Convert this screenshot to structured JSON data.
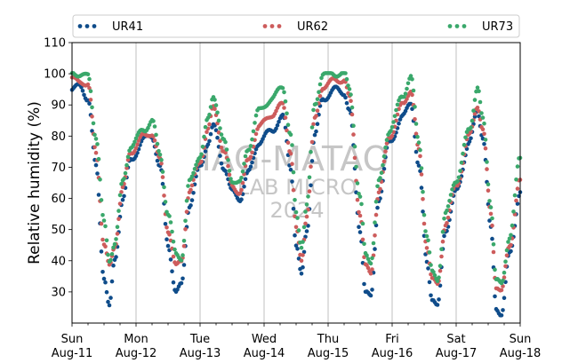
{
  "chart_data": {
    "type": "scatter",
    "ylabel": "Relative humidity (%)",
    "xlabel": "",
    "ylim": [
      20,
      110
    ],
    "xlim": [
      "2024-08-11T00:00",
      "2024-08-18T00:00"
    ],
    "yticks": [
      30,
      40,
      50,
      60,
      70,
      80,
      90,
      100,
      110
    ],
    "xticks": [
      {
        "day": "Sun",
        "date": "Aug-11"
      },
      {
        "day": "Mon",
        "date": "Aug-12"
      },
      {
        "day": "Tue",
        "date": "Aug-13"
      },
      {
        "day": "Wed",
        "date": "Aug-14"
      },
      {
        "day": "Thu",
        "date": "Aug-15"
      },
      {
        "day": "Fri",
        "date": "Aug-16"
      },
      {
        "day": "Sat",
        "date": "Aug-17"
      },
      {
        "day": "Sun",
        "date": "Aug-18"
      }
    ],
    "grid": "x-major",
    "legend": "top",
    "series": [
      {
        "name": "UR41",
        "color": "#0f4c8a",
        "points": [
          [
            "2024-08-11T00:00",
            95
          ],
          [
            "2024-08-11T03:00",
            96
          ],
          [
            "2024-08-11T06:00",
            92
          ],
          [
            "2024-08-11T09:00",
            70
          ],
          [
            "2024-08-11T12:00",
            35
          ],
          [
            "2024-08-11T14:00",
            25
          ],
          [
            "2024-08-11T16:00",
            40
          ],
          [
            "2024-08-11T19:00",
            60
          ],
          [
            "2024-08-11T22:00",
            72
          ],
          [
            "2024-08-12T03:00",
            79
          ],
          [
            "2024-08-12T06:00",
            80
          ],
          [
            "2024-08-12T09:00",
            70
          ],
          [
            "2024-08-12T12:00",
            45
          ],
          [
            "2024-08-12T15:00",
            30
          ],
          [
            "2024-08-12T17:00",
            32
          ],
          [
            "2024-08-12T20:00",
            58
          ],
          [
            "2024-08-13T00:00",
            70
          ],
          [
            "2024-08-13T03:00",
            78
          ],
          [
            "2024-08-13T05:00",
            83
          ],
          [
            "2024-08-13T09:00",
            70
          ],
          [
            "2024-08-13T12:00",
            62
          ],
          [
            "2024-08-13T15:00",
            60
          ],
          [
            "2024-08-13T18:00",
            68
          ],
          [
            "2024-08-13T22:00",
            78
          ],
          [
            "2024-08-14T03:00",
            82
          ],
          [
            "2024-08-14T07:00",
            86
          ],
          [
            "2024-08-14T10:00",
            70
          ],
          [
            "2024-08-14T12:00",
            45
          ],
          [
            "2024-08-14T14:00",
            35
          ],
          [
            "2024-08-14T16:00",
            50
          ],
          [
            "2024-08-14T19:00",
            80
          ],
          [
            "2024-08-14T22:00",
            92
          ],
          [
            "2024-08-15T03:00",
            95
          ],
          [
            "2024-08-15T06:00",
            94
          ],
          [
            "2024-08-15T08:00",
            88
          ],
          [
            "2024-08-15T12:00",
            50
          ],
          [
            "2024-08-15T14:00",
            30
          ],
          [
            "2024-08-15T16:00",
            28
          ],
          [
            "2024-08-15T19:00",
            60
          ],
          [
            "2024-08-15T23:00",
            78
          ],
          [
            "2024-08-16T04:00",
            86
          ],
          [
            "2024-08-16T07:00",
            91
          ],
          [
            "2024-08-16T10:00",
            70
          ],
          [
            "2024-08-16T13:00",
            40
          ],
          [
            "2024-08-16T15:00",
            28
          ],
          [
            "2024-08-16T17:00",
            25
          ],
          [
            "2024-08-16T20:00",
            50
          ],
          [
            "2024-08-17T00:00",
            62
          ],
          [
            "2024-08-17T05:00",
            78
          ],
          [
            "2024-08-17T08:00",
            88
          ],
          [
            "2024-08-17T10:00",
            80
          ],
          [
            "2024-08-17T13:00",
            50
          ],
          [
            "2024-08-17T15:00",
            25
          ],
          [
            "2024-08-17T17:00",
            23
          ],
          [
            "2024-08-17T20:00",
            42
          ],
          [
            "2024-08-18T00:00",
            62
          ]
        ]
      },
      {
        "name": "UR62",
        "color": "#cd5c5c",
        "points": [
          [
            "2024-08-11T00:00",
            98
          ],
          [
            "2024-08-11T03:00",
            98
          ],
          [
            "2024-08-11T06:00",
            96
          ],
          [
            "2024-08-11T09:00",
            75
          ],
          [
            "2024-08-11T12:00",
            45
          ],
          [
            "2024-08-11T14:00",
            38
          ],
          [
            "2024-08-11T16:00",
            45
          ],
          [
            "2024-08-11T19:00",
            63
          ],
          [
            "2024-08-11T22:00",
            75
          ],
          [
            "2024-08-12T03:00",
            80
          ],
          [
            "2024-08-12T06:00",
            81
          ],
          [
            "2024-08-12T09:00",
            72
          ],
          [
            "2024-08-12T12:00",
            50
          ],
          [
            "2024-08-12T15:00",
            38
          ],
          [
            "2024-08-12T17:00",
            40
          ],
          [
            "2024-08-12T20:00",
            62
          ],
          [
            "2024-08-13T00:00",
            72
          ],
          [
            "2024-08-13T03:00",
            82
          ],
          [
            "2024-08-13T05:00",
            89
          ],
          [
            "2024-08-13T09:00",
            75
          ],
          [
            "2024-08-13T12:00",
            64
          ],
          [
            "2024-08-13T15:00",
            62
          ],
          [
            "2024-08-13T18:00",
            72
          ],
          [
            "2024-08-13T22:00",
            83
          ],
          [
            "2024-08-14T03:00",
            87
          ],
          [
            "2024-08-14T07:00",
            90
          ],
          [
            "2024-08-14T10:00",
            75
          ],
          [
            "2024-08-14T12:00",
            50
          ],
          [
            "2024-08-14T14:00",
            40
          ],
          [
            "2024-08-14T16:00",
            55
          ],
          [
            "2024-08-14T19:00",
            85
          ],
          [
            "2024-08-14T22:00",
            96
          ],
          [
            "2024-08-15T03:00",
            98
          ],
          [
            "2024-08-15T06:00",
            98
          ],
          [
            "2024-08-15T08:00",
            92
          ],
          [
            "2024-08-15T12:00",
            55
          ],
          [
            "2024-08-15T14:00",
            38
          ],
          [
            "2024-08-15T16:00",
            36
          ],
          [
            "2024-08-15T19:00",
            62
          ],
          [
            "2024-08-15T23:00",
            80
          ],
          [
            "2024-08-16T04:00",
            90
          ],
          [
            "2024-08-16T07:00",
            95
          ],
          [
            "2024-08-16T10:00",
            75
          ],
          [
            "2024-08-16T13:00",
            45
          ],
          [
            "2024-08-16T15:00",
            34
          ],
          [
            "2024-08-16T17:00",
            32
          ],
          [
            "2024-08-16T20:00",
            52
          ],
          [
            "2024-08-17T00:00",
            64
          ],
          [
            "2024-08-17T05:00",
            80
          ],
          [
            "2024-08-17T08:00",
            90
          ],
          [
            "2024-08-17T10:00",
            82
          ],
          [
            "2024-08-17T13:00",
            55
          ],
          [
            "2024-08-17T15:00",
            32
          ],
          [
            "2024-08-17T17:00",
            30
          ],
          [
            "2024-08-17T20:00",
            45
          ],
          [
            "2024-08-18T00:00",
            66
          ]
        ]
      },
      {
        "name": "UR73",
        "color": "#3aa86b",
        "points": [
          [
            "2024-08-11T00:00",
            100
          ],
          [
            "2024-08-11T03:00",
            100
          ],
          [
            "2024-08-11T06:00",
            99
          ],
          [
            "2024-08-11T09:00",
            80
          ],
          [
            "2024-08-11T12:00",
            52
          ],
          [
            "2024-08-11T14:00",
            40
          ],
          [
            "2024-08-11T16:00",
            46
          ],
          [
            "2024-08-11T19:00",
            65
          ],
          [
            "2024-08-11T22:00",
            77
          ],
          [
            "2024-08-12T03:00",
            82
          ],
          [
            "2024-08-12T06:00",
            85
          ],
          [
            "2024-08-12T09:00",
            74
          ],
          [
            "2024-08-12T12:00",
            55
          ],
          [
            "2024-08-12T15:00",
            42
          ],
          [
            "2024-08-12T17:00",
            41
          ],
          [
            "2024-08-12T20:00",
            65
          ],
          [
            "2024-08-13T00:00",
            74
          ],
          [
            "2024-08-13T03:00",
            85
          ],
          [
            "2024-08-13T05:00",
            93
          ],
          [
            "2024-08-13T09:00",
            78
          ],
          [
            "2024-08-13T12:00",
            66
          ],
          [
            "2024-08-13T15:00",
            65
          ],
          [
            "2024-08-13T18:00",
            76
          ],
          [
            "2024-08-13T22:00",
            88
          ],
          [
            "2024-08-14T03:00",
            92
          ],
          [
            "2024-08-14T07:00",
            96
          ],
          [
            "2024-08-14T10:00",
            80
          ],
          [
            "2024-08-14T12:00",
            55
          ],
          [
            "2024-08-14T14:00",
            45
          ],
          [
            "2024-08-14T16:00",
            58
          ],
          [
            "2024-08-14T19:00",
            90
          ],
          [
            "2024-08-14T22:00",
            100
          ],
          [
            "2024-08-15T03:00",
            100
          ],
          [
            "2024-08-15T06:00",
            100
          ],
          [
            "2024-08-15T08:00",
            95
          ],
          [
            "2024-08-15T12:00",
            60
          ],
          [
            "2024-08-15T14:00",
            42
          ],
          [
            "2024-08-15T16:00",
            40
          ],
          [
            "2024-08-15T19:00",
            65
          ],
          [
            "2024-08-15T23:00",
            82
          ],
          [
            "2024-08-16T04:00",
            93
          ],
          [
            "2024-08-16T07:00",
            99
          ],
          [
            "2024-08-16T10:00",
            78
          ],
          [
            "2024-08-16T13:00",
            48
          ],
          [
            "2024-08-16T15:00",
            36
          ],
          [
            "2024-08-16T17:00",
            34
          ],
          [
            "2024-08-16T20:00",
            55
          ],
          [
            "2024-08-17T00:00",
            66
          ],
          [
            "2024-08-17T05:00",
            82
          ],
          [
            "2024-08-17T08:00",
            96
          ],
          [
            "2024-08-17T10:00",
            85
          ],
          [
            "2024-08-17T13:00",
            58
          ],
          [
            "2024-08-17T15:00",
            34
          ],
          [
            "2024-08-17T17:00",
            32
          ],
          [
            "2024-08-17T20:00",
            48
          ],
          [
            "2024-08-18T00:00",
            73
          ]
        ]
      }
    ]
  },
  "watermark": {
    "line1": "IAG-MATAO",
    "line2": "LAB MICRO",
    "line3": "2024"
  }
}
